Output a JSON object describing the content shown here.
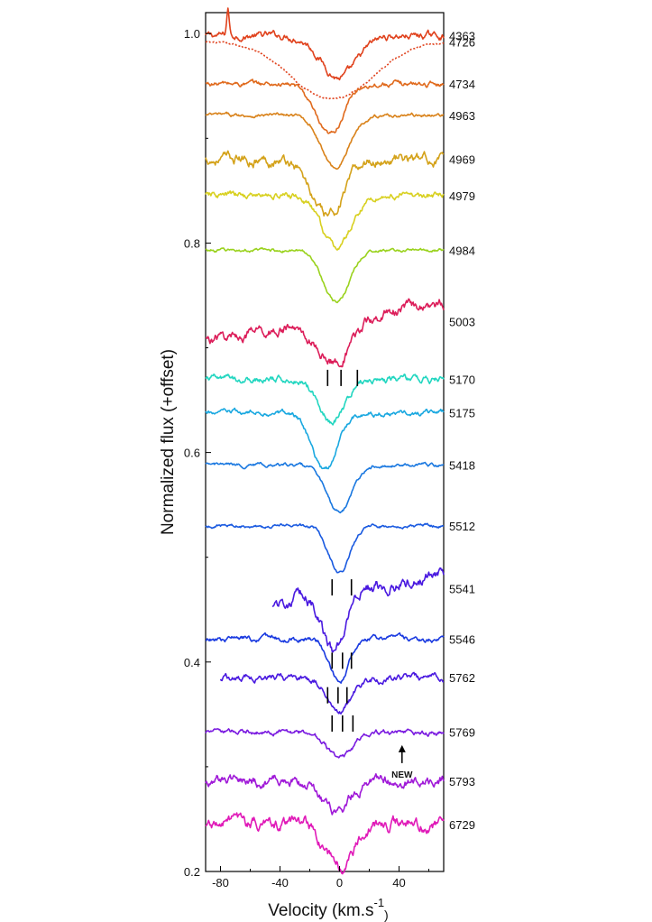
{
  "chart_data": {
    "type": "line",
    "title": "",
    "xlabel": "Velocity (km.s",
    "xlabel_superscript": "-1",
    "xlabel_suffix": ")",
    "ylabel": "Normalized flux (+offset)",
    "xlim": [
      -90,
      70
    ],
    "ylim": [
      0.2,
      1.02
    ],
    "x_ticks": [
      -80,
      -40,
      0,
      40
    ],
    "x_tick_labels": [
      "-80",
      "-40",
      "0",
      "40"
    ],
    "y_ticks": [
      0.2,
      0.4,
      0.6,
      0.8,
      1.0
    ],
    "y_tick_labels": [
      "0.2",
      "0.4",
      "0.6",
      "0.8",
      "1.0"
    ],
    "grid": false,
    "series": [
      {
        "name": "4363",
        "color": "#e0421d",
        "baseline": 0.998,
        "depth": 0.04,
        "width": 17,
        "center": 0,
        "noise": 0.004,
        "xmin": -90,
        "xmax": 70,
        "style": "solid",
        "emission": {
          "v": -75,
          "height": 0.025
        }
      },
      {
        "name": "4726",
        "color": "#e0421d",
        "baseline": 0.992,
        "depth": 0.055,
        "width": 38,
        "center": -5,
        "noise": 0.001,
        "xmin": -90,
        "xmax": 70,
        "style": "dotted"
      },
      {
        "name": "4734",
        "color": "#e06a1d",
        "baseline": 0.952,
        "depth": 0.05,
        "width": 13,
        "center": -7,
        "noise": 0.003,
        "xmin": -90,
        "xmax": 70,
        "style": "solid"
      },
      {
        "name": "4963",
        "color": "#d9821a",
        "baseline": 0.922,
        "depth": 0.05,
        "width": 13,
        "center": -3,
        "noise": 0.002,
        "xmin": -90,
        "xmax": 70,
        "style": "solid"
      },
      {
        "name": "4969",
        "color": "#d4a21a",
        "baseline": 0.88,
        "depth": 0.055,
        "width": 15,
        "center": -8,
        "noise": 0.006,
        "xmin": -90,
        "xmax": 70,
        "style": "solid"
      },
      {
        "name": "4979",
        "color": "#d8d020",
        "baseline": 0.845,
        "depth": 0.05,
        "width": 14,
        "center": -2,
        "noise": 0.004,
        "xmin": -90,
        "xmax": 70,
        "style": "solid"
      },
      {
        "name": "4984",
        "color": "#9ad21e",
        "baseline": 0.793,
        "depth": 0.05,
        "width": 12,
        "center": -2,
        "noise": 0.002,
        "xmin": -90,
        "xmax": 70,
        "style": "solid"
      },
      {
        "name": "5003",
        "color": "#dc1e5a",
        "baseline": 0.725,
        "depth": 0.04,
        "width": 17,
        "center": -3,
        "noise": 0.006,
        "xmin": -90,
        "xmax": 70,
        "style": "solid",
        "tilt": 0.018
      },
      {
        "name": "5170",
        "color": "#22d6c0",
        "baseline": 0.67,
        "depth": 0.04,
        "width": 12,
        "center": -5,
        "noise": 0.004,
        "xmin": -90,
        "xmax": 70,
        "style": "solid"
      },
      {
        "name": "5175",
        "color": "#1aa8e0",
        "baseline": 0.638,
        "depth": 0.055,
        "width": 12,
        "center": -10,
        "noise": 0.003,
        "xmin": -90,
        "xmax": 70,
        "style": "solid"
      },
      {
        "name": "5418",
        "color": "#1a78e0",
        "baseline": 0.588,
        "depth": 0.045,
        "width": 12,
        "center": 0,
        "noise": 0.002,
        "xmin": -90,
        "xmax": 70,
        "style": "solid"
      },
      {
        "name": "5512",
        "color": "#1a5ae0",
        "baseline": 0.53,
        "depth": 0.045,
        "width": 10,
        "center": 0,
        "noise": 0.002,
        "xmin": -90,
        "xmax": 70,
        "style": "solid"
      },
      {
        "name": "5541",
        "color": "#4a1ae0",
        "baseline": 0.47,
        "depth": 0.055,
        "width": 10,
        "center": -4,
        "noise": 0.007,
        "xmin": -45,
        "xmax": 70,
        "style": "solid",
        "tilt": 0.02
      },
      {
        "name": "5546",
        "color": "#1a3ae0",
        "baseline": 0.422,
        "depth": 0.04,
        "width": 9,
        "center": 0,
        "noise": 0.003,
        "xmin": -90,
        "xmax": 70,
        "style": "solid"
      },
      {
        "name": "5762",
        "color": "#4a1ae0",
        "baseline": 0.385,
        "depth": 0.03,
        "width": 11,
        "center": 0,
        "noise": 0.004,
        "xmin": -80,
        "xmax": 70,
        "style": "solid"
      },
      {
        "name": "5769",
        "color": "#7a1ae0",
        "baseline": 0.333,
        "depth": 0.025,
        "width": 12,
        "center": 0,
        "noise": 0.003,
        "xmin": -90,
        "xmax": 70,
        "style": "solid"
      },
      {
        "name": "5793",
        "color": "#a01ad8",
        "baseline": 0.286,
        "depth": 0.03,
        "width": 13,
        "center": -3,
        "noise": 0.006,
        "xmin": -90,
        "xmax": 70,
        "style": "solid"
      },
      {
        "name": "6729",
        "color": "#e01ab8",
        "baseline": 0.245,
        "depth": 0.04,
        "width": 13,
        "center": 0,
        "noise": 0.007,
        "xmin": -90,
        "xmax": 70,
        "style": "solid"
      }
    ],
    "tick_marks": [
      {
        "series": "5003",
        "x": [
          -8,
          1,
          12
        ]
      },
      {
        "series": "5512",
        "x": [
          -5,
          8
        ]
      },
      {
        "series": "5541",
        "x": [
          -5,
          2,
          8
        ]
      },
      {
        "series": "5546",
        "x": [
          -8,
          -1,
          5
        ]
      },
      {
        "series": "5762",
        "x": [
          -5,
          2,
          9
        ]
      }
    ],
    "annotations": [
      {
        "text": "NEW",
        "x": 42,
        "y": 0.3,
        "arrow": true
      }
    ]
  }
}
